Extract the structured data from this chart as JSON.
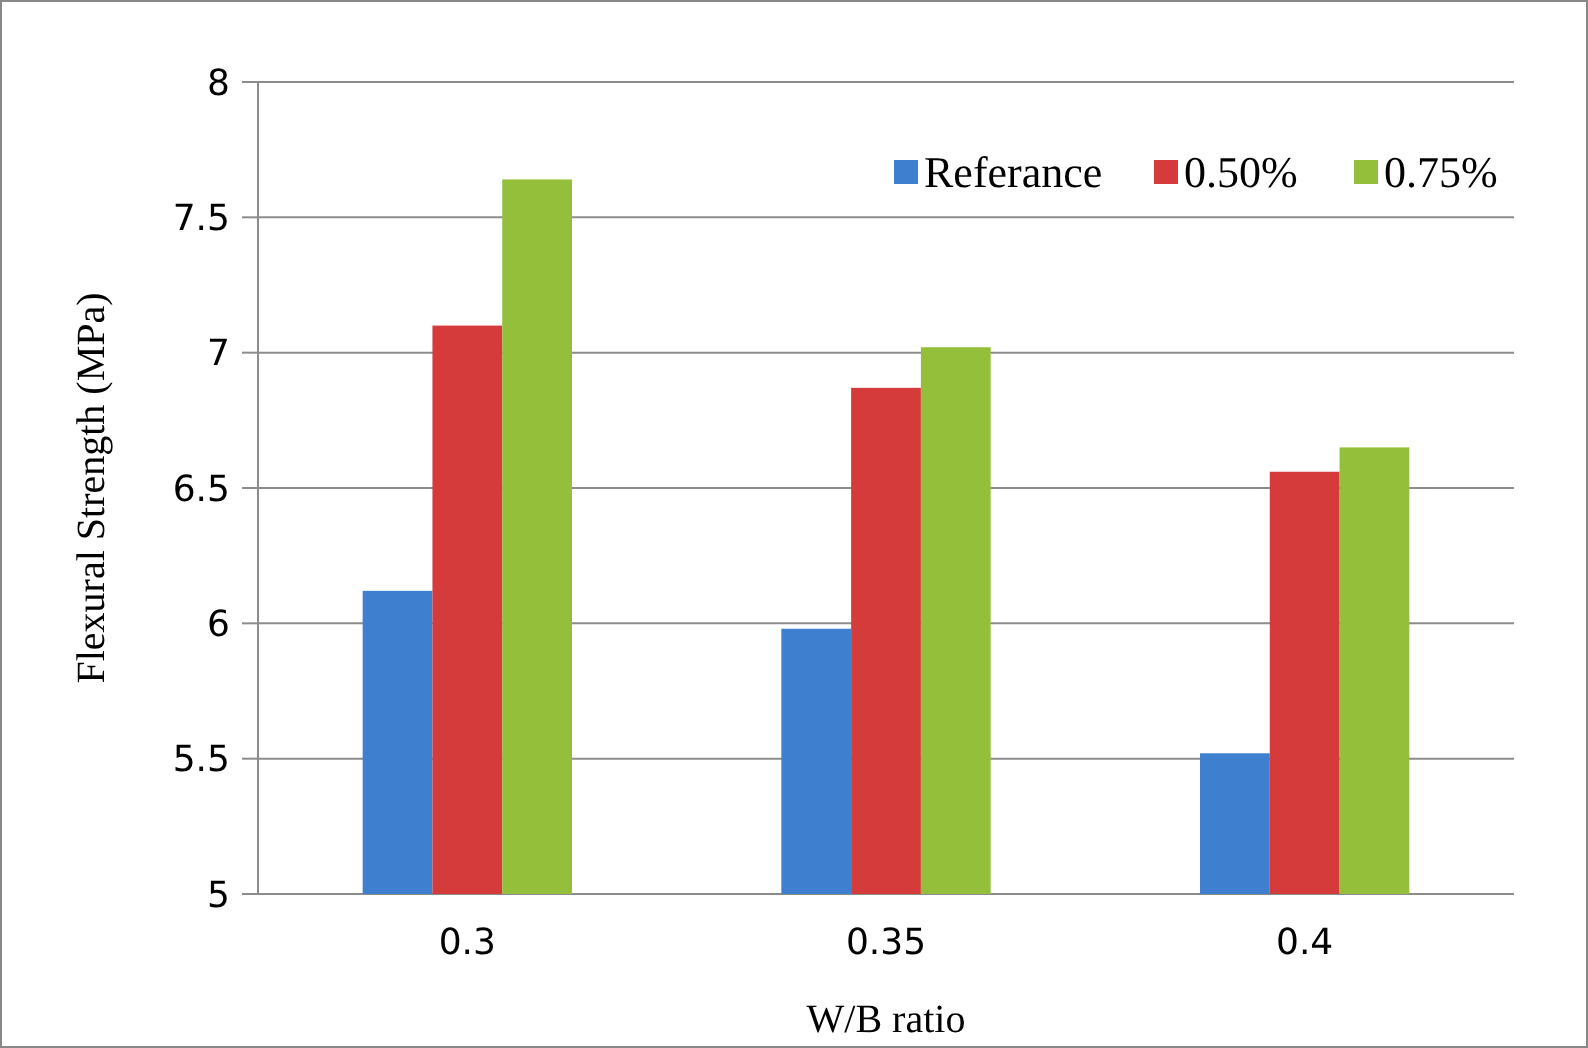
{
  "chart_data": {
    "type": "bar",
    "xlabel": "W/B ratio",
    "ylabel": "Flexural Strength (MPa)",
    "categories": [
      "0.3",
      "0.35",
      "0.4"
    ],
    "series": [
      {
        "name": "Referance",
        "color": "#3f7fd0",
        "values": [
          6.12,
          5.98,
          5.52
        ]
      },
      {
        "name": "0.50%",
        "color": "#d63b3b",
        "values": [
          7.1,
          6.87,
          6.56
        ]
      },
      {
        "name": "0.75%",
        "color": "#94bf3a",
        "values": [
          7.64,
          7.02,
          6.65
        ]
      }
    ],
    "ylim": [
      5,
      8
    ],
    "yticks": [
      5,
      5.5,
      6,
      6.5,
      7,
      7.5,
      8
    ],
    "grid": "y",
    "legend": "top right"
  }
}
